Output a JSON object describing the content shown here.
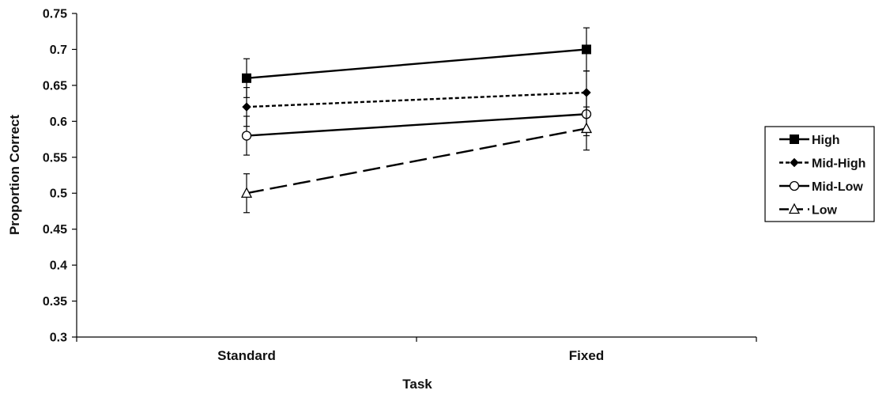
{
  "chart_data": {
    "type": "line",
    "xlabel": "Task",
    "ylabel": "Proportion Correct",
    "categories": [
      "Standard",
      "Fixed"
    ],
    "ylim": [
      0.3,
      0.75
    ],
    "yticks": [
      "0.3",
      "0.35",
      "0.4",
      "0.45",
      "0.5",
      "0.55",
      "0.6",
      "0.65",
      "0.7",
      "0.75"
    ],
    "grid": false,
    "legend_position": "right",
    "series": [
      {
        "name": "High",
        "values": [
          0.66,
          0.7
        ],
        "errors": [
          0.027,
          0.03
        ],
        "marker": "square",
        "dash": "solid"
      },
      {
        "name": "Mid-High",
        "values": [
          0.62,
          0.64
        ],
        "errors": [
          0.027,
          0.03
        ],
        "marker": "diamond",
        "dash": "dotted"
      },
      {
        "name": "Mid-Low",
        "values": [
          0.58,
          0.61
        ],
        "errors": [
          0.027,
          0.03
        ],
        "marker": "circle",
        "dash": "solid"
      },
      {
        "name": "Low",
        "values": [
          0.5,
          0.59
        ],
        "errors": [
          0.027,
          0.03
        ],
        "marker": "triangle",
        "dash": "dashed"
      }
    ]
  }
}
